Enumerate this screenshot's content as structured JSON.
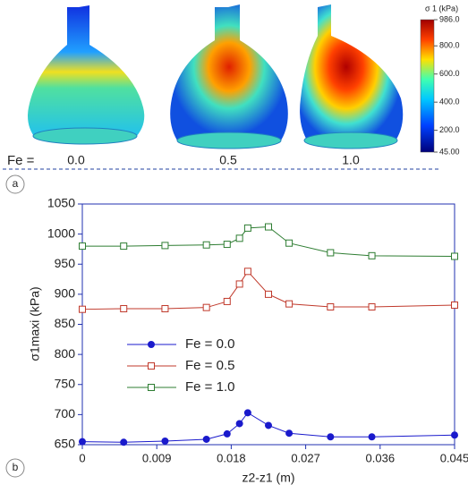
{
  "panel_a": {
    "label": "a",
    "fe_prefix": "Fe =",
    "fe_values": [
      "0.0",
      "0.5",
      "1.0"
    ],
    "colorbar": {
      "title": "σ 1 (kPa)",
      "lim": [
        45,
        986
      ],
      "ticks": [
        {
          "value": 986,
          "label": "986.0"
        },
        {
          "value": 800,
          "label": "800.0"
        },
        {
          "value": 600,
          "label": "600.0"
        },
        {
          "value": 400,
          "label": "400.0"
        },
        {
          "value": 200,
          "label": "200.0"
        },
        {
          "value": 45,
          "label": "45.00"
        }
      ]
    }
  },
  "chart_data": {
    "type": "line",
    "panel_label": "b",
    "x_label": "z2-z1 (m)",
    "y_label": "σ1maxi (kPa)",
    "xlim": [
      0,
      0.045
    ],
    "xticks": [
      0,
      0.009,
      0.018,
      0.027,
      0.036,
      0.045
    ],
    "ylim": [
      650,
      1050
    ],
    "yticks": [
      650,
      700,
      750,
      800,
      850,
      900,
      950,
      1000,
      1050
    ],
    "legend": "center-left",
    "series": [
      {
        "name": "Fe = 0.0",
        "color": "#1a1acc",
        "marker": "circle",
        "filled": true,
        "x": [
          0,
          0.005,
          0.01,
          0.015,
          0.0175,
          0.019,
          0.02,
          0.0225,
          0.025,
          0.03,
          0.035,
          0.045
        ],
        "values": [
          655,
          654,
          656,
          659,
          668,
          685,
          703,
          682,
          669,
          663,
          663,
          666
        ]
      },
      {
        "name": "Fe = 0.5",
        "color": "#c0392b",
        "marker": "square",
        "filled": false,
        "x": [
          0,
          0.005,
          0.01,
          0.015,
          0.0175,
          0.019,
          0.02,
          0.0225,
          0.025,
          0.03,
          0.035,
          0.045
        ],
        "values": [
          875,
          876,
          876,
          878,
          888,
          917,
          938,
          900,
          884,
          879,
          879,
          882
        ]
      },
      {
        "name": "Fe = 1.0",
        "color": "#2e7d32",
        "marker": "square",
        "filled": false,
        "x": [
          0,
          0.005,
          0.01,
          0.015,
          0.0175,
          0.019,
          0.02,
          0.0225,
          0.025,
          0.03,
          0.035,
          0.045
        ],
        "values": [
          980,
          980,
          981,
          982,
          983,
          993,
          1010,
          1012,
          985,
          969,
          964,
          963
        ]
      }
    ]
  }
}
